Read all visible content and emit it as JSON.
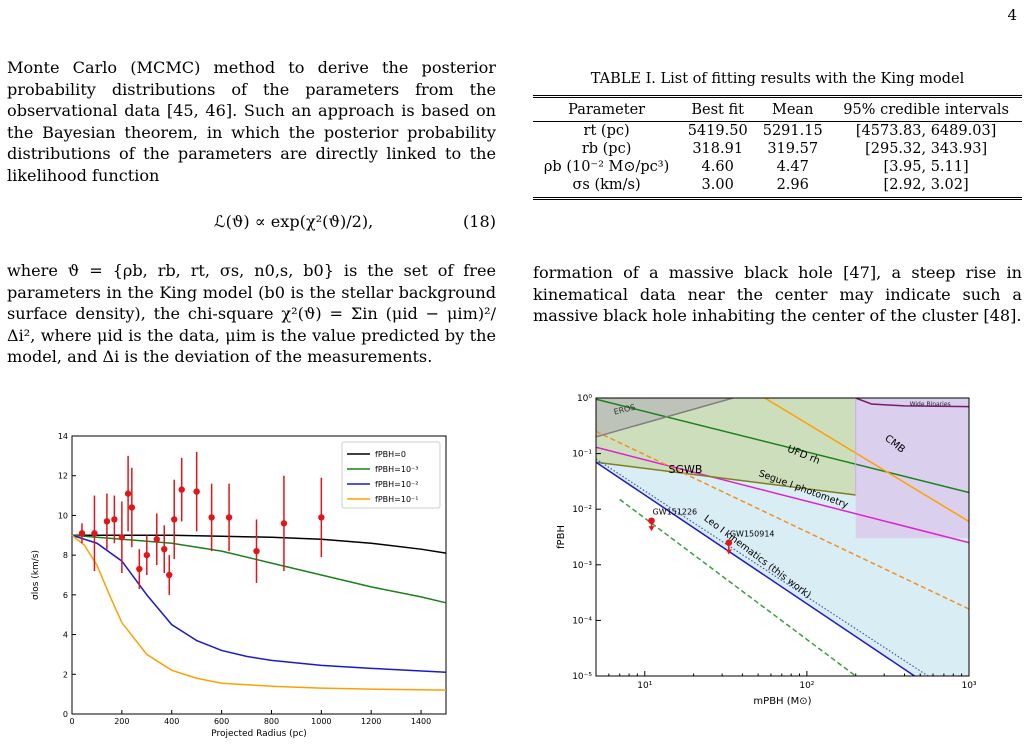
{
  "page_number": "4",
  "left_column": {
    "paragraph1": "Monte Carlo (MCMC) method to derive the posterior probability distributions of the parameters from the observational data [45, 46]. Such an approach is based on the Bayesian theorem, in which the posterior probability distributions of the parameters are directly linked to the likelihood function",
    "equation": "ℒ(ϑ) ∝ exp(χ²(ϑ)/2),",
    "equation_number": "(18)",
    "paragraph2": "where ϑ = {ρb, rb, rt, σs, n0,s, b0} is the set of free parameters in the King model (b0 is the stellar background surface density), the chi-square χ²(ϑ) = Σin (μid − μim)²/Δi², where μid is the data, μim is the value predicted by the model, and Δi is the deviation of the measurements."
  },
  "table": {
    "caption": "TABLE I. List of fitting results with the King model",
    "headers": [
      "Parameter",
      "Best fit",
      "Mean",
      "95% credible intervals"
    ],
    "rows": [
      [
        "rt (pc)",
        "5419.50",
        "5291.15",
        "[4573.83, 6489.03]"
      ],
      [
        "rb (pc)",
        "318.91",
        "319.57",
        "[295.32, 343.93]"
      ],
      [
        "ρb (10⁻² M⊙/pc³)",
        "4.60",
        "4.47",
        "[3.95, 5.11]"
      ],
      [
        "σs (km/s)",
        "3.00",
        "2.96",
        "[2.92, 3.02]"
      ]
    ]
  },
  "right_column": {
    "paragraph": "formation of a massive black hole [47], a steep rise in kinematical data near the center may indicate such a massive black hole inhabiting the center of the cluster [48]."
  },
  "colors": {
    "black": "#000000",
    "green": "#1a801a",
    "blue": "#1a1acc",
    "orange": "#ffa000",
    "red": "#e0161b",
    "magenta": "#e020d0",
    "olive": "#7f7f1e",
    "light_blue": "#d9edf5",
    "purple": "#7a1a6a",
    "gray": "#808080",
    "dash_orange": "#f0902a",
    "dash_green": "#3aa03a",
    "dot_blue": "#3a5f9a"
  },
  "chart_data": [
    {
      "type": "scatter",
      "xlabel": "Projected Radius (pc)",
      "ylabel": "σlos (km/s)",
      "xlim": [
        0,
        1500
      ],
      "ylim": [
        0,
        14
      ],
      "x_ticks": [
        "0",
        "200",
        "400",
        "600",
        "800",
        "1000",
        "1200",
        "1400"
      ],
      "y_ticks": [
        "0",
        "2",
        "4",
        "6",
        "8",
        "10",
        "12",
        "14"
      ],
      "legend_position": "top-right",
      "points": [
        {
          "x": 40,
          "y": 9.1,
          "err": 0.5
        },
        {
          "x": 90,
          "y": 9.1,
          "err": 1.9
        },
        {
          "x": 140,
          "y": 9.7,
          "err": 1.4
        },
        {
          "x": 170,
          "y": 9.8,
          "err": 1.2
        },
        {
          "x": 200,
          "y": 8.9,
          "err": 1.8
        },
        {
          "x": 225,
          "y": 11.1,
          "err": 1.9
        },
        {
          "x": 240,
          "y": 10.4,
          "err": 2.0
        },
        {
          "x": 270,
          "y": 7.3,
          "err": 1.0
        },
        {
          "x": 300,
          "y": 8.0,
          "err": 1.0
        },
        {
          "x": 340,
          "y": 8.8,
          "err": 1.3
        },
        {
          "x": 370,
          "y": 8.3,
          "err": 1.2
        },
        {
          "x": 390,
          "y": 7.0,
          "err": 1.0
        },
        {
          "x": 410,
          "y": 9.8,
          "err": 2.0
        },
        {
          "x": 440,
          "y": 11.3,
          "err": 1.6
        },
        {
          "x": 500,
          "y": 11.2,
          "err": 2.0
        },
        {
          "x": 560,
          "y": 9.9,
          "err": 1.7
        },
        {
          "x": 630,
          "y": 9.9,
          "err": 1.7
        },
        {
          "x": 740,
          "y": 8.2,
          "err": 1.6
        },
        {
          "x": 850,
          "y": 9.6,
          "err": 2.4
        },
        {
          "x": 1000,
          "y": 9.9,
          "err": 2.0
        }
      ],
      "series": [
        {
          "name": "fPBH=0",
          "color": "#000000",
          "x": [
            0,
            100,
            200,
            400,
            600,
            800,
            1000,
            1200,
            1400,
            1500
          ],
          "y": [
            9.0,
            9.0,
            9.0,
            9.0,
            8.95,
            8.9,
            8.8,
            8.6,
            8.3,
            8.1
          ]
        },
        {
          "name": "fPBH=10⁻³",
          "color": "#1a801a",
          "x": [
            0,
            100,
            200,
            400,
            600,
            800,
            1000,
            1200,
            1400,
            1500
          ],
          "y": [
            9.0,
            8.9,
            8.8,
            8.6,
            8.2,
            7.6,
            7.0,
            6.4,
            5.9,
            5.6
          ]
        },
        {
          "name": "fPBH=10⁻²",
          "color": "#1a1acc",
          "x": [
            0,
            100,
            200,
            300,
            400,
            500,
            600,
            700,
            800,
            1000,
            1200,
            1500
          ],
          "y": [
            9.0,
            8.6,
            7.7,
            6.0,
            4.5,
            3.7,
            3.2,
            2.9,
            2.7,
            2.45,
            2.3,
            2.1
          ]
        },
        {
          "name": "fPBH=10⁻¹",
          "color": "#ffa000",
          "x": [
            0,
            50,
            100,
            150,
            200,
            300,
            400,
            500,
            600,
            800,
            1000,
            1200,
            1500
          ],
          "y": [
            9.0,
            8.5,
            7.5,
            6.0,
            4.6,
            3.0,
            2.2,
            1.8,
            1.55,
            1.4,
            1.3,
            1.25,
            1.2
          ]
        }
      ]
    },
    {
      "type": "line",
      "xlabel": "mPBH (M⊙)",
      "ylabel": "fPBH",
      "xscale": "log",
      "yscale": "log",
      "xlim": [
        5,
        1000
      ],
      "ylim": [
        1e-05,
        1
      ],
      "x_ticks": [
        "10¹",
        "10²",
        "10³"
      ],
      "y_ticks": [
        "10⁻⁵",
        "10⁻⁴",
        "10⁻³",
        "10⁻²",
        "10⁻¹",
        "10⁰"
      ],
      "labels": [
        "EROS",
        "Wide Binaries",
        "UFD rh",
        "CMB",
        "SGWB",
        "Segue I photometry",
        "Leo I kinematics (this work)"
      ],
      "series": [
        {
          "name": "UFD rh",
          "color": "#1a801a",
          "x": [
            5,
            1000
          ],
          "y": [
            0.95,
            0.02
          ]
        },
        {
          "name": "Segue I photometry",
          "color": "#e020d0",
          "x": [
            5,
            1000
          ],
          "y": [
            0.13,
            0.0025
          ]
        },
        {
          "name": "SGWB",
          "color": "#7f7f1e",
          "x": [
            5,
            200
          ],
          "y": [
            0.07,
            0.018
          ]
        },
        {
          "name": "CMB",
          "color": "#ffa000",
          "x": [
            55,
            1000
          ],
          "y": [
            1.0,
            0.006
          ]
        },
        {
          "name": "Leo I kinematics (this work)",
          "color": "#1a1acc",
          "x": [
            5,
            1000
          ],
          "y": [
            0.07,
            2.2e-06
          ]
        },
        {
          "name": "",
          "color": "#3a5f9a",
          "x": [
            5,
            1000
          ],
          "y": [
            0.08,
            3.3e-06
          ]
        },
        {
          "name": "",
          "color": "#f0902a",
          "x": [
            5,
            1000
          ],
          "y": [
            0.25,
            0.00016
          ]
        },
        {
          "name": "",
          "color": "#3aa03a",
          "x": [
            7,
            200
          ],
          "y": [
            0.015,
            1e-05
          ]
        },
        {
          "name": "",
          "color": "#808080",
          "x": [
            5,
            35
          ],
          "y": [
            0.2,
            1.0
          ]
        }
      ],
      "points": [
        {
          "label": "GW151226",
          "x": 11,
          "y": 0.0062,
          "down_to": 0.0042
        },
        {
          "label": "GW150914",
          "x": 33,
          "y": 0.0025,
          "down_to": 0.0016
        }
      ]
    }
  ]
}
